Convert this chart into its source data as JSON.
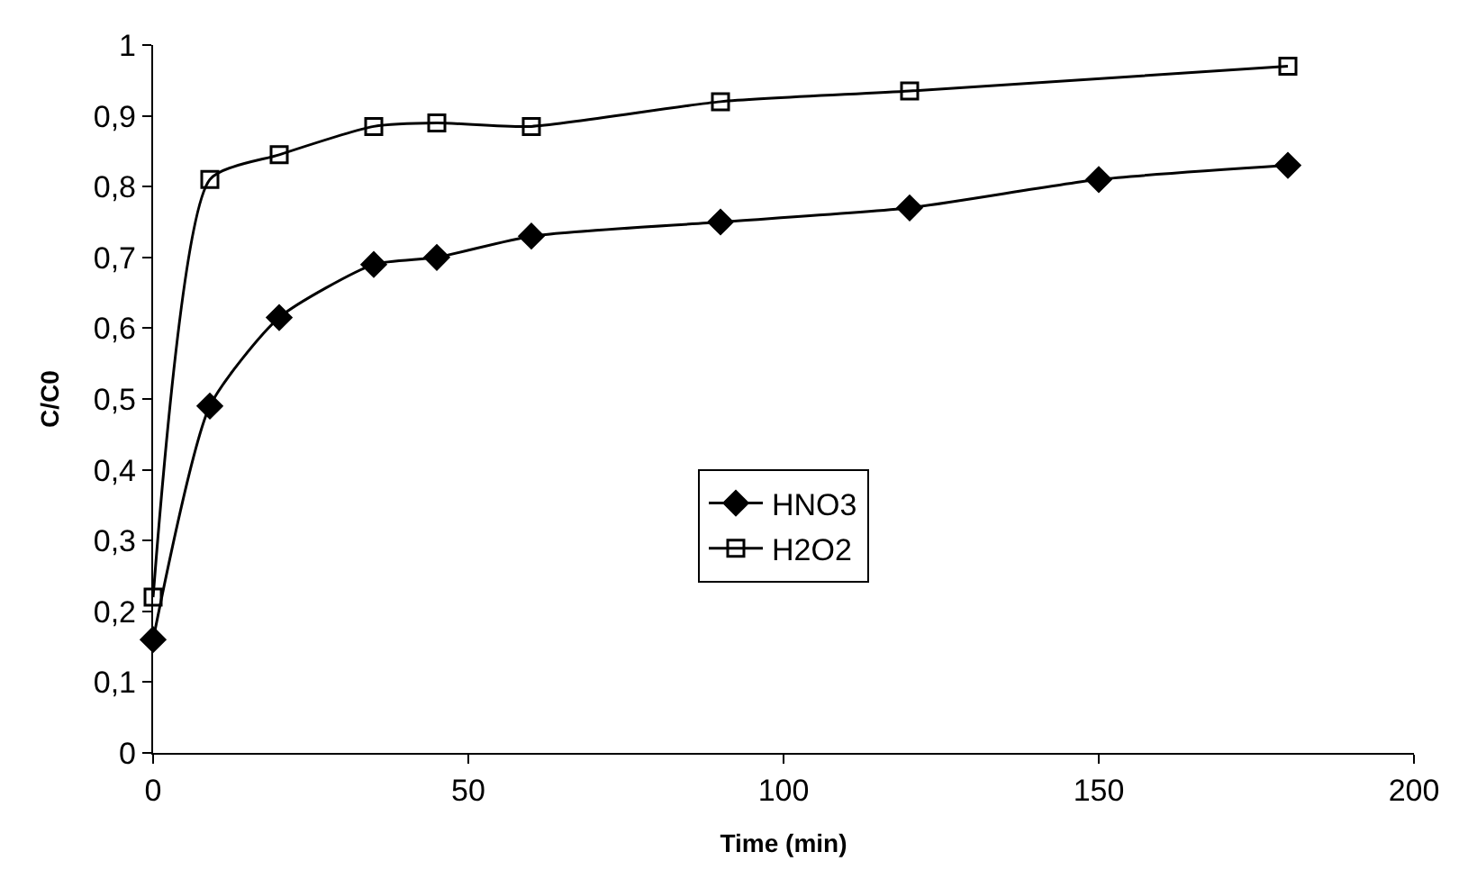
{
  "chart_data": {
    "type": "line",
    "xlabel": "Time (min)",
    "ylabel": "C/C0",
    "xlim": [
      0,
      200
    ],
    "xticks": [
      0,
      50,
      100,
      150,
      200
    ],
    "ylim": [
      0,
      1
    ],
    "yticks": [
      0,
      {
        "value": 0.1,
        "label": "0,1"
      },
      {
        "value": 0.2,
        "label": "0,2"
      },
      {
        "value": 0.3,
        "label": "0,3"
      },
      {
        "value": 0.4,
        "label": "0,4"
      },
      {
        "value": 0.5,
        "label": "0,5"
      },
      {
        "value": 0.6,
        "label": "0,6"
      },
      {
        "value": 0.7,
        "label": "0,7"
      },
      {
        "value": 0.8,
        "label": "0,8"
      },
      {
        "value": 0.9,
        "label": "0,9"
      },
      1
    ],
    "legend": "center",
    "line_style": "solid",
    "series": [
      {
        "name": "HNO3",
        "color": "#000000",
        "marker": "diamond",
        "x": [
          0,
          9,
          20,
          35,
          45,
          60,
          90,
          120,
          150,
          180
        ],
        "values": [
          0.16,
          0.49,
          0.615,
          0.69,
          0.7,
          0.73,
          0.75,
          0.77,
          0.81,
          0.83
        ]
      },
      {
        "name": "H2O2",
        "color": "#000000",
        "marker": "square-open",
        "x": [
          0,
          9,
          20,
          35,
          45,
          60,
          90,
          120,
          180
        ],
        "values": [
          0.22,
          0.81,
          0.845,
          0.885,
          0.89,
          0.885,
          0.92,
          0.935,
          0.97
        ]
      }
    ]
  }
}
